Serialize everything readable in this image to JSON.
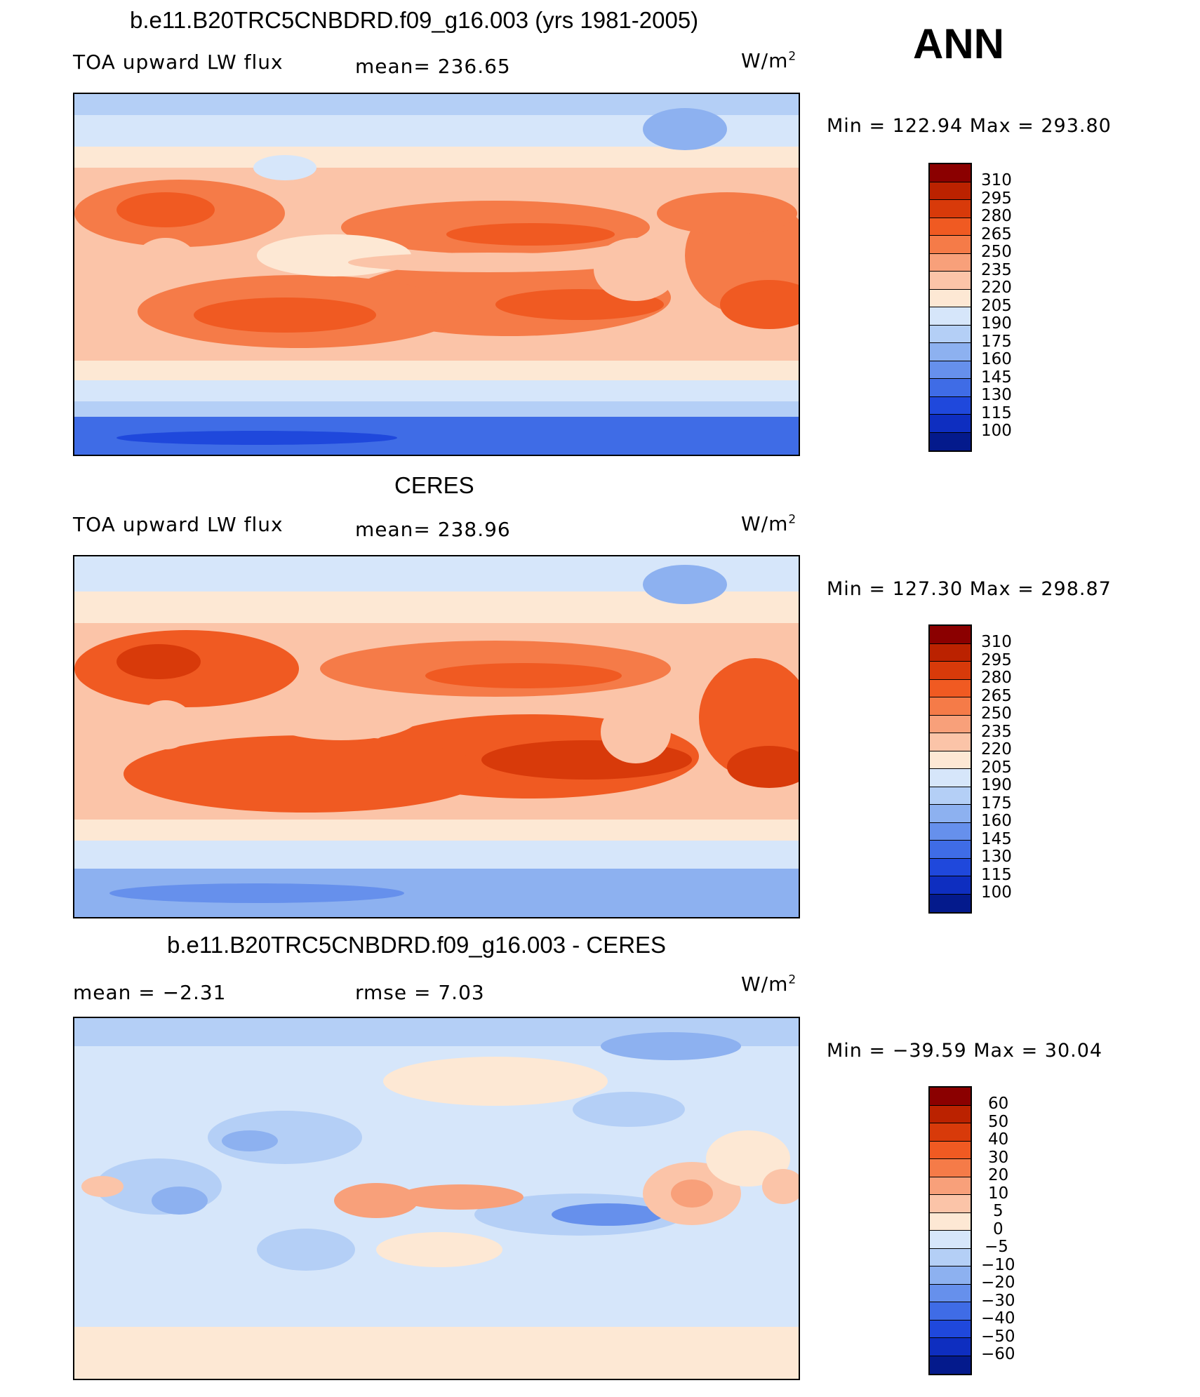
{
  "season": "ANN",
  "panels": [
    {
      "title": "b.e11.B20TRC5CNBDRD.f09_g16.003 (yrs 1981-2005)",
      "left_label": "TOA upward LW flux",
      "center_label": "mean=  236.65",
      "units": "W/m",
      "units_sup": "2",
      "minmax": "Min  =  122.94  Max  =  293.80",
      "levels": [
        "310",
        "295",
        "280",
        "265",
        "250",
        "235",
        "220",
        "205",
        "190",
        "175",
        "160",
        "145",
        "130",
        "115",
        "100"
      ],
      "colors": [
        "#8b0000",
        "#bb2200",
        "#d83a0a",
        "#f05a22",
        "#f57b48",
        "#f8a07a",
        "#fbc4a8",
        "#fde8d4",
        "#d6e6fa",
        "#b4cff6",
        "#8db1f0",
        "#6690ec",
        "#3f6ce6",
        "#1f48dc",
        "#0e2ec0",
        "#041a8c"
      ]
    },
    {
      "title": "CERES",
      "left_label": "TOA upward LW flux",
      "center_label": "mean=  238.96",
      "units": "W/m",
      "units_sup": "2",
      "minmax": "Min  =  127.30  Max  =  298.87",
      "levels": [
        "310",
        "295",
        "280",
        "265",
        "250",
        "235",
        "220",
        "205",
        "190",
        "175",
        "160",
        "145",
        "130",
        "115",
        "100"
      ],
      "colors": [
        "#8b0000",
        "#bb2200",
        "#d83a0a",
        "#f05a22",
        "#f57b48",
        "#f8a07a",
        "#fbc4a8",
        "#fde8d4",
        "#d6e6fa",
        "#b4cff6",
        "#8db1f0",
        "#6690ec",
        "#3f6ce6",
        "#1f48dc",
        "#0e2ec0",
        "#041a8c"
      ]
    },
    {
      "title": "b.e11.B20TRC5CNBDRD.f09_g16.003 - CERES",
      "left_label": "mean  =    −2.31",
      "center_label": "rmse  =      7.03",
      "units": "W/m",
      "units_sup": "2",
      "minmax": "Min  =  −39.59  Max  =     30.04",
      "levels": [
        "60",
        "50",
        "40",
        "30",
        "20",
        "10",
        "5",
        "0",
        "−5",
        "−10",
        "−20",
        "−30",
        "−40",
        "−50",
        "−60"
      ],
      "colors": [
        "#8b0000",
        "#bb2200",
        "#d83a0a",
        "#f05a22",
        "#f57b48",
        "#f8a07a",
        "#fbc4a8",
        "#fde8d4",
        "#d6e6fa",
        "#b4cff6",
        "#8db1f0",
        "#6690ec",
        "#3f6ce6",
        "#1f48dc",
        "#0e2ec0",
        "#041a8c"
      ]
    }
  ]
}
